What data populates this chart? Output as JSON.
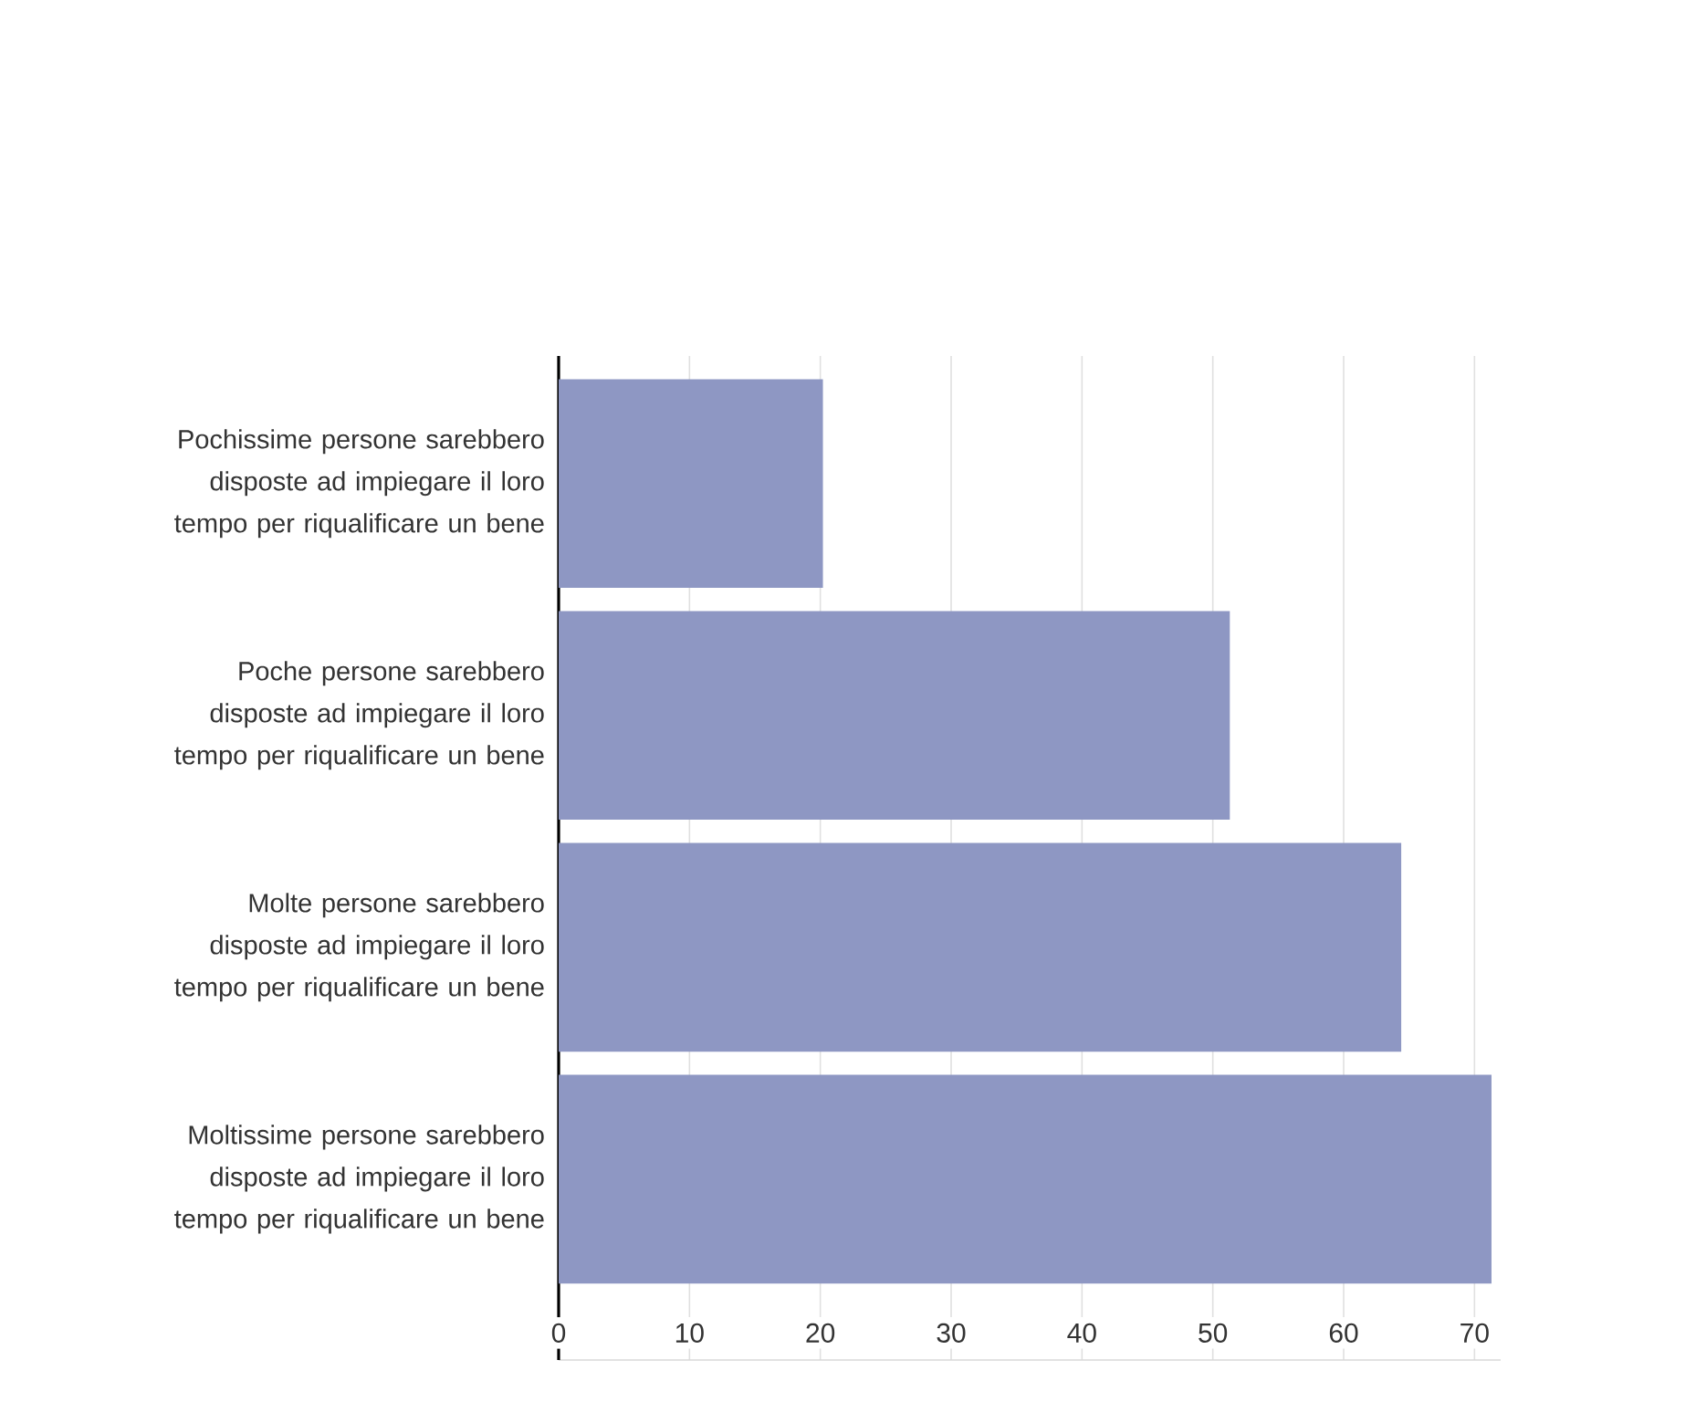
{
  "chart_data": {
    "type": "bar",
    "orientation": "horizontal",
    "categories": [
      "Pochissime persone sarebbero disposte ad impiegare il loro tempo per riqualificare un bene",
      "Poche persone sarebbero disposte ad impiegare il loro tempo per riqualificare un bene",
      "Molte persone sarebbero disposte ad impiegare il loro tempo per riqualificare un bene",
      "Moltissime persone sarebbero disposte ad impiegare il loro tempo per riqualificare un bene"
    ],
    "values": [
      20.2,
      51.3,
      64.4,
      71.3
    ],
    "color": "#8e97c3",
    "xlim": [
      0,
      72
    ],
    "xticks": [
      0,
      10,
      20,
      30,
      40,
      50,
      60,
      70
    ],
    "grid": "x"
  }
}
